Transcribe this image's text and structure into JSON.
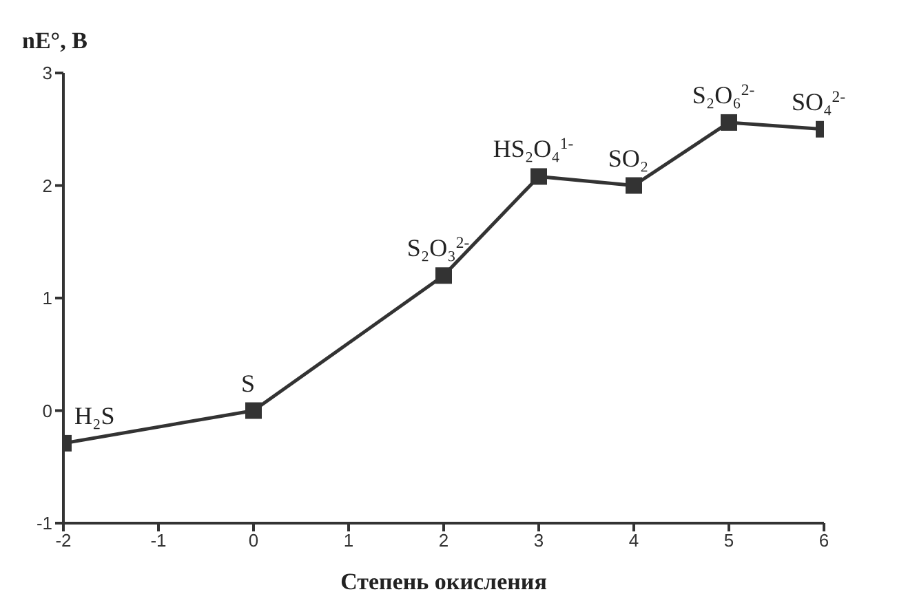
{
  "chart_data": {
    "type": "line",
    "xlabel": "Степень окисления",
    "ylabel": "nE°, B",
    "x": [
      -2,
      0,
      2,
      3,
      4,
      5,
      6
    ],
    "series": [
      {
        "color": "#333333",
        "values": [
          -0.29,
          0,
          1.2,
          2.08,
          2.0,
          2.56,
          2.5
        ]
      }
    ],
    "xlim": [
      -2,
      6
    ],
    "xticks": [
      -2,
      -1,
      0,
      1,
      2,
      3,
      4,
      5,
      6
    ],
    "ylim": [
      -1,
      3
    ],
    "yticks": [
      -1,
      0,
      1,
      2,
      3
    ],
    "grid": false,
    "legend": false,
    "marker": "square",
    "line_style": "solid",
    "annotations": [
      {
        "text": "H₂S",
        "x": -2,
        "y": -0.29
      },
      {
        "text": "S",
        "x": 0,
        "y": 0
      },
      {
        "text": "S₂O₃$^{2-}$",
        "x": 2,
        "y": 1.2
      },
      {
        "text": "HS₂O₄$^{1-}$",
        "x": 3,
        "y": 2.08
      },
      {
        "text": "SO₂",
        "x": 4,
        "y": 2.0
      },
      {
        "text": "S₂O₆$^{2-}$",
        "x": 5,
        "y": 2.56
      },
      {
        "text": "SO₄$^{2-}$",
        "x": 6,
        "y": 2.5
      }
    ]
  }
}
